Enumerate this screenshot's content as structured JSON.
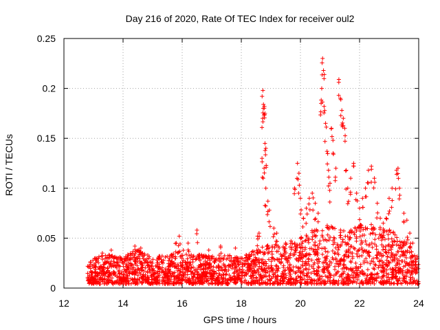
{
  "chart_data": {
    "type": "scatter",
    "title": "Day 216 of 2020, Rate Of TEC Index for receiver oul2",
    "xlabel": "GPS time / hours",
    "ylabel": "ROTI / TECUs",
    "xlim": [
      12,
      24
    ],
    "ylim": [
      0,
      0.25
    ],
    "x_ticks": [
      "12",
      "14",
      "16",
      "18",
      "20",
      "22",
      "24"
    ],
    "y_ticks": [
      "0",
      "0.05",
      "0.1",
      "0.15",
      "0.2",
      "0.25"
    ],
    "grid": true,
    "marker": "plus",
    "color": "#ff0000",
    "envelope_x": [
      12.8,
      13.0,
      13.5,
      14.0,
      14.5,
      15.0,
      15.5,
      16.0,
      16.5,
      17.0,
      17.5,
      18.0,
      18.5,
      19.0,
      19.5,
      20.0,
      20.5,
      21.0,
      21.5,
      22.0,
      22.5,
      23.0,
      23.5,
      24.0
    ],
    "envelope_y": [
      0.022,
      0.026,
      0.03,
      0.028,
      0.035,
      0.027,
      0.03,
      0.035,
      0.03,
      0.028,
      0.03,
      0.028,
      0.035,
      0.04,
      0.04,
      0.05,
      0.055,
      0.06,
      0.055,
      0.06,
      0.06,
      0.055,
      0.045,
      0.03
    ],
    "points": [
      [
        12.9,
        0.024
      ],
      [
        13.3,
        0.035
      ],
      [
        13.6,
        0.038
      ],
      [
        14.4,
        0.042
      ],
      [
        14.6,
        0.04
      ],
      [
        15.2,
        0.03
      ],
      [
        15.8,
        0.045
      ],
      [
        15.9,
        0.052
      ],
      [
        16.2,
        0.045
      ],
      [
        16.5,
        0.058
      ],
      [
        16.9,
        0.038
      ],
      [
        17.3,
        0.042
      ],
      [
        17.8,
        0.04
      ],
      [
        18.2,
        0.03
      ],
      [
        18.55,
        0.052
      ],
      [
        18.6,
        0.055
      ],
      [
        18.7,
        0.13
      ],
      [
        18.72,
        0.17
      ],
      [
        18.75,
        0.184
      ],
      [
        18.78,
        0.182
      ],
      [
        18.8,
        0.175
      ],
      [
        18.73,
        0.198
      ],
      [
        18.8,
        0.145
      ],
      [
        18.83,
        0.14
      ],
      [
        18.77,
        0.12
      ],
      [
        18.83,
        0.1
      ],
      [
        18.9,
        0.087
      ],
      [
        18.95,
        0.078
      ],
      [
        19.1,
        0.06
      ],
      [
        19.2,
        0.055
      ],
      [
        19.5,
        0.045
      ],
      [
        19.8,
        0.1
      ],
      [
        19.9,
        0.125
      ],
      [
        19.95,
        0.115
      ],
      [
        20.0,
        0.09
      ],
      [
        20.1,
        0.07
      ],
      [
        20.2,
        0.08
      ],
      [
        20.3,
        0.09
      ],
      [
        20.4,
        0.095
      ],
      [
        20.5,
        0.085
      ],
      [
        20.6,
        0.075
      ],
      [
        20.7,
        0.185
      ],
      [
        20.72,
        0.2
      ],
      [
        20.75,
        0.23
      ],
      [
        20.78,
        0.218
      ],
      [
        20.8,
        0.182
      ],
      [
        20.85,
        0.165
      ],
      [
        20.9,
        0.137
      ],
      [
        20.95,
        0.118
      ],
      [
        21.0,
        0.105
      ],
      [
        21.05,
        0.16
      ],
      [
        21.1,
        0.148
      ],
      [
        21.2,
        0.12
      ],
      [
        21.3,
        0.209
      ],
      [
        21.35,
        0.19
      ],
      [
        21.4,
        0.178
      ],
      [
        21.45,
        0.17
      ],
      [
        21.5,
        0.16
      ],
      [
        21.55,
        0.118
      ],
      [
        21.6,
        0.1
      ],
      [
        21.7,
        0.11
      ],
      [
        21.8,
        0.125
      ],
      [
        21.9,
        0.095
      ],
      [
        22.0,
        0.08
      ],
      [
        22.1,
        0.09
      ],
      [
        22.2,
        0.1
      ],
      [
        22.3,
        0.118
      ],
      [
        22.4,
        0.122
      ],
      [
        22.5,
        0.11
      ],
      [
        22.6,
        0.085
      ],
      [
        22.7,
        0.07
      ],
      [
        22.8,
        0.065
      ],
      [
        22.9,
        0.07
      ],
      [
        23.0,
        0.09
      ],
      [
        23.1,
        0.1
      ],
      [
        23.25,
        0.118
      ],
      [
        23.3,
        0.12
      ],
      [
        23.35,
        0.1
      ],
      [
        23.5,
        0.075
      ],
      [
        23.6,
        0.068
      ],
      [
        23.7,
        0.055
      ],
      [
        23.8,
        0.045
      ],
      [
        23.9,
        0.03
      ]
    ]
  }
}
